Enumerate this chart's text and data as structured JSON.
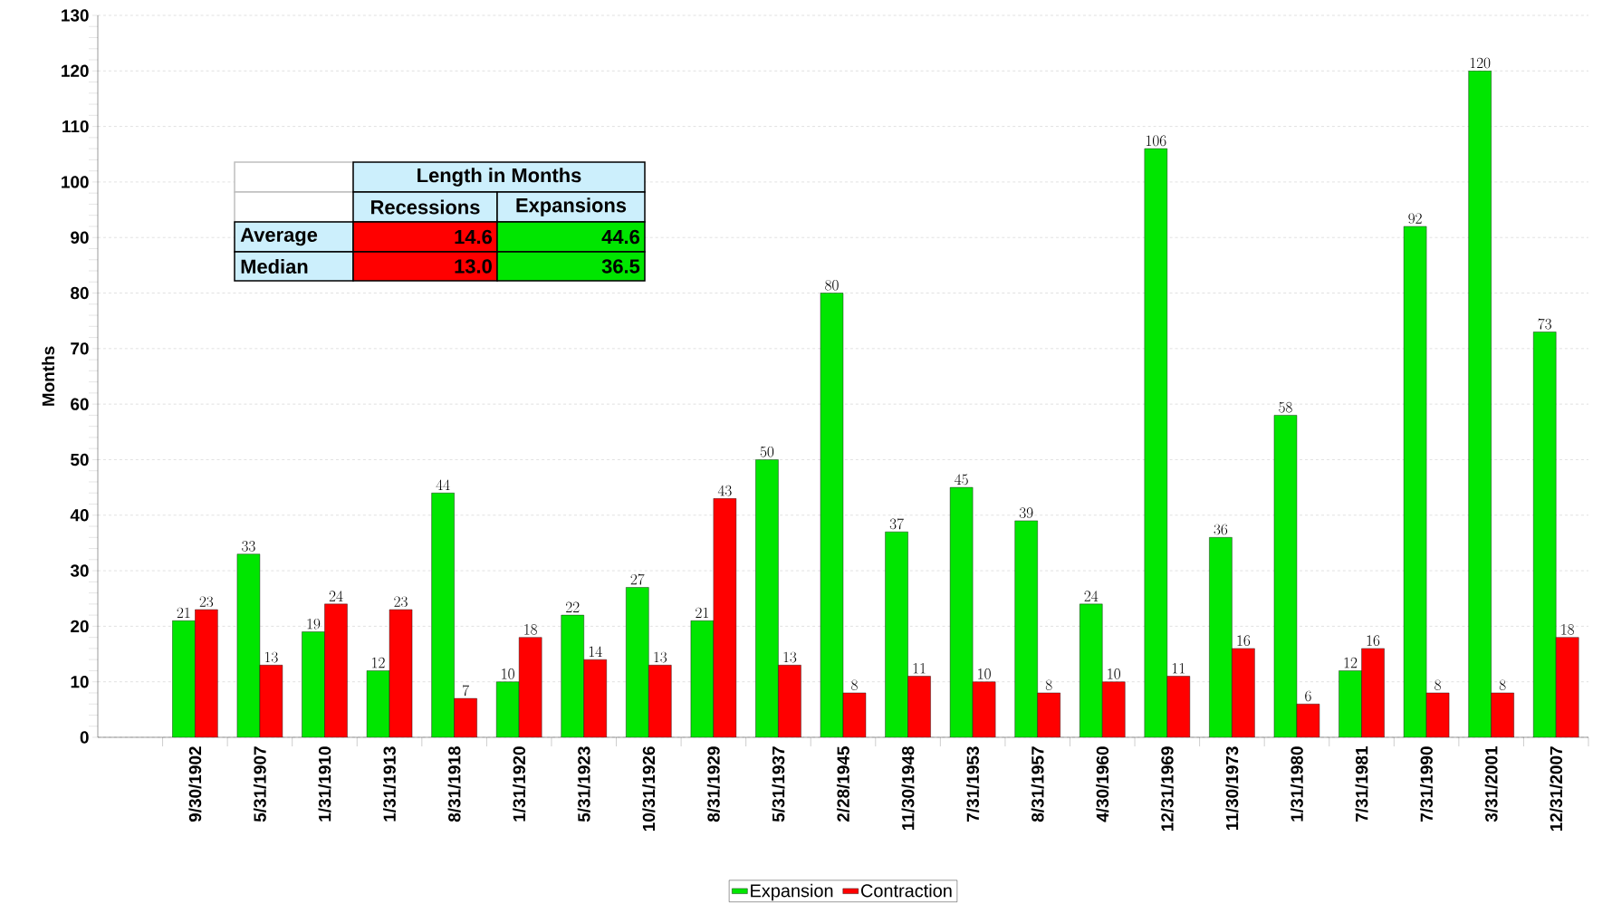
{
  "chart_data": {
    "type": "bar",
    "ylabel": "Months",
    "categories": [
      "9/30/1902",
      "5/31/1907",
      "1/31/1910",
      "1/31/1913",
      "8/31/1918",
      "1/31/1920",
      "5/31/1923",
      "10/31/1926",
      "8/31/1929",
      "5/31/1937",
      "2/28/1945",
      "11/30/1948",
      "7/31/1953",
      "8/31/1957",
      "4/30/1960",
      "12/31/1969",
      "11/30/1973",
      "1/31/1980",
      "7/31/1981",
      "7/31/1990",
      "3/31/2001",
      "12/31/2007"
    ],
    "series": [
      {
        "name": "Expansion",
        "color": "#00e600",
        "values": [
          21,
          33,
          19,
          12,
          44,
          10,
          22,
          27,
          21,
          50,
          80,
          37,
          45,
          39,
          24,
          106,
          36,
          58,
          12,
          92,
          120,
          73
        ]
      },
      {
        "name": "Contraction",
        "color": "#ff0000",
        "values": [
          23,
          13,
          24,
          23,
          7,
          18,
          14,
          13,
          43,
          13,
          8,
          11,
          10,
          8,
          10,
          11,
          16,
          6,
          16,
          8,
          8,
          18
        ]
      }
    ],
    "ylim": [
      0,
      130
    ],
    "yticks": [
      0,
      10,
      20,
      30,
      40,
      50,
      60,
      70,
      80,
      90,
      100,
      110,
      120,
      130
    ],
    "grid": "y",
    "legend": "bottom",
    "data_labels": true,
    "annotations": [
      "Length in Months",
      "Recessions",
      "Expansions",
      "Average",
      "14.6",
      "44.6",
      "Median",
      "13.0",
      "36.5"
    ]
  }
}
